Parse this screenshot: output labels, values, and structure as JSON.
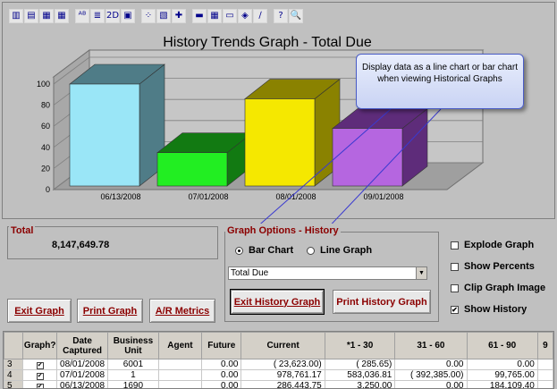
{
  "toolbar": {
    "icons": [
      "bar-chart-icon",
      "bar-3d-icon",
      "bar-grid-icon",
      "table-icon",
      "abc-icon",
      "list-icon",
      "2d3d-icon",
      "chart-copy-icon",
      "scatter-icon",
      "chart-type-icon",
      "red-marker-icon",
      "legend-icon",
      "data-grid-icon",
      "label-icon",
      "brush-icon",
      "pen-icon",
      "help-icon",
      "zoom-icon"
    ],
    "glyphs": [
      "▥",
      "▤",
      "▦",
      "▦",
      "ᴬᴮ",
      "≣",
      "2D",
      "▣",
      "⁘",
      "▧",
      "✚",
      "▬",
      "▦",
      "▭",
      "◈",
      "∕",
      "?",
      "🔍"
    ]
  },
  "chart": {
    "title": "History Trends Graph - Total Due",
    "y_ticks": [
      "100",
      "80",
      "60",
      "40",
      "20",
      "0"
    ]
  },
  "chart_data": {
    "type": "bar",
    "title": "History Trends Graph - Total Due",
    "categories": [
      "06/13/2008",
      "07/01/2008",
      "08/01/2008",
      "09/01/2008"
    ],
    "values": [
      100,
      35,
      86,
      58
    ],
    "colors": [
      "#9ae6f7",
      "#22ee22",
      "#f5e800",
      "#b566e0"
    ],
    "side_colors": [
      "#4f7c87",
      "#127a12",
      "#8a8200",
      "#5e2c7a"
    ],
    "ylim": [
      0,
      100
    ],
    "grid": true
  },
  "callout": {
    "text": "Display data as a line chart or bar chart when viewing Historical Graphs"
  },
  "total": {
    "label": "Total",
    "value": "8,147,649.78"
  },
  "graph_options": {
    "label": "Graph Options - History",
    "bar_chart": "Bar Chart",
    "line_graph": "Line Graph",
    "selected_measure": "Total Due",
    "exit_history": "Exit History Graph",
    "print_history": "Print History Graph"
  },
  "buttons": {
    "exit_graph": "Exit Graph",
    "print_graph": "Print Graph",
    "ar_metrics": "A/R Metrics"
  },
  "checkboxes": {
    "explode": "Explode Graph",
    "percents": "Show Percents",
    "clip": "Clip Graph Image",
    "history": "Show History"
  },
  "grid": {
    "headers": [
      "",
      "Graph?",
      "Date Captured",
      "Business Unit",
      "Agent",
      "Future",
      "Current",
      "*1 - 30",
      "31 - 60",
      "61 - 90",
      "9"
    ],
    "rows": [
      {
        "n": "3",
        "date": "08/01/2008",
        "bu": "6001",
        "agent": "",
        "future": "0.00",
        "current": "( 23,623.00)",
        "d1": "( 285.65)",
        "d2": "0.00",
        "d3": "0.00"
      },
      {
        "n": "4",
        "date": "07/01/2008",
        "bu": "1",
        "agent": "",
        "future": "0.00",
        "current": "978,761.17",
        "d1": "583,036.81",
        "d2": "( 392,385.00)",
        "d3": "99,765.00"
      },
      {
        "n": "5",
        "date": "06/13/2008",
        "bu": "1690",
        "agent": "",
        "future": "0.00",
        "current": "286,443.75",
        "d1": "3,250.00",
        "d2": "0.00",
        "d3": "184,109.40"
      }
    ]
  }
}
